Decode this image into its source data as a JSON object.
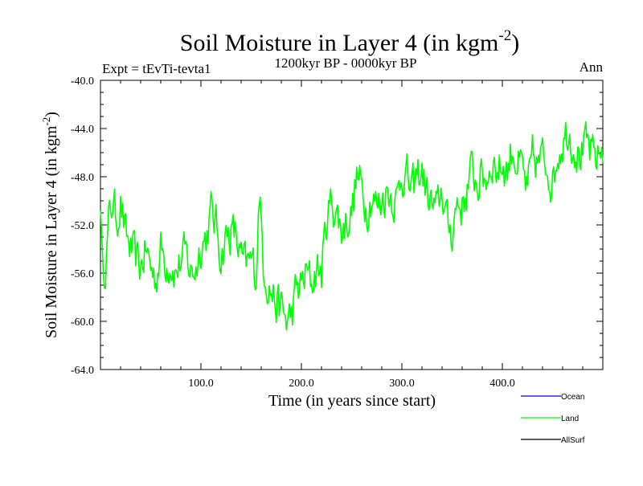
{
  "chart_data": {
    "type": "line",
    "title": "Soil Moisture in Layer 4 (in kgm",
    "title_sup": "-2",
    "title_close": ")",
    "subtitle": "1200kyr BP - 0000kyr BP",
    "left_label": "Expt = tEvTi-tevta1",
    "right_label": "Ann",
    "xlabel": "Time (in years since start)",
    "ylabel": "Soil Moisture in Layer 4 (in kgm",
    "ylabel_sup": "-2",
    "ylabel_close": ")",
    "xlim": [
      0,
      500
    ],
    "ylim": [
      -64,
      -40
    ],
    "x_ticks": [
      100,
      200,
      300,
      400
    ],
    "x_tick_labels": [
      "100.0",
      "200.0",
      "300.0",
      "400.0"
    ],
    "y_ticks": [
      -64,
      -60,
      -56,
      -52,
      -48,
      -44,
      -40
    ],
    "y_tick_labels": [
      "-64.0",
      "-60.0",
      "-56.0",
      "-52.0",
      "-48.0",
      "-44.0",
      "-40.0"
    ],
    "legend": [
      {
        "name": "Ocean",
        "color": "#0000ff"
      },
      {
        "name": "Land",
        "color": "#00ff00"
      },
      {
        "name": "AllSurf",
        "color": "#000000"
      }
    ],
    "series": [
      {
        "name": "Land",
        "color": "#00ff00",
        "anchors": {
          "x": [
            0,
            2,
            5,
            8,
            12,
            16,
            20,
            25,
            30,
            35,
            40,
            45,
            50,
            55,
            60,
            65,
            70,
            75,
            80,
            85,
            90,
            95,
            100,
            105,
            110,
            115,
            120,
            125,
            130,
            135,
            140,
            145,
            150,
            155,
            158,
            162,
            166,
            170,
            175,
            180,
            185,
            190,
            195,
            200,
            205,
            210,
            215,
            220,
            225,
            230,
            235,
            240,
            245,
            250,
            255,
            260,
            265,
            270,
            275,
            280,
            285,
            290,
            295,
            300,
            305,
            310,
            315,
            320,
            325,
            330,
            335,
            340,
            345,
            350,
            355,
            360,
            365,
            370,
            375,
            380,
            385,
            390,
            395,
            400,
            405,
            410,
            415,
            420,
            425,
            430,
            435,
            440,
            445,
            450,
            455,
            460,
            465,
            470,
            475,
            480,
            485,
            490,
            495,
            500
          ],
          "y": [
            -49.5,
            -56,
            -55,
            -52,
            -50,
            -51.5,
            -50,
            -53,
            -54,
            -55,
            -55.5,
            -54,
            -55.5,
            -56.5,
            -54,
            -55,
            -55,
            -56,
            -55,
            -54.5,
            -56,
            -55.5,
            -53.5,
            -53,
            -51,
            -52,
            -54.5,
            -53,
            -52.5,
            -53,
            -55,
            -55.5,
            -55,
            -56,
            -49,
            -55,
            -56.5,
            -57.5,
            -58.5,
            -59,
            -60,
            -59.5,
            -57.5,
            -57,
            -56,
            -57,
            -55.5,
            -56,
            -51.5,
            -50,
            -51,
            -52.5,
            -51.5,
            -51,
            -48,
            -49,
            -50.5,
            -49.5,
            -50.5,
            -50,
            -49,
            -49.5,
            -50,
            -47.5,
            -48,
            -49.5,
            -48,
            -47.5,
            -49.5,
            -50.5,
            -51,
            -49,
            -52,
            -52.5,
            -50,
            -50.5,
            -49,
            -47.5,
            -48.5,
            -48,
            -48,
            -46.5,
            -47.5,
            -47,
            -47.5,
            -45.5,
            -47,
            -47.5,
            -49.5,
            -46.5,
            -47,
            -46.5,
            -47,
            -48.5,
            -46,
            -45,
            -44,
            -45,
            -46,
            -46,
            -45.5,
            -46.5,
            -46.5,
            -45.5
          ]
        }
      }
    ]
  }
}
